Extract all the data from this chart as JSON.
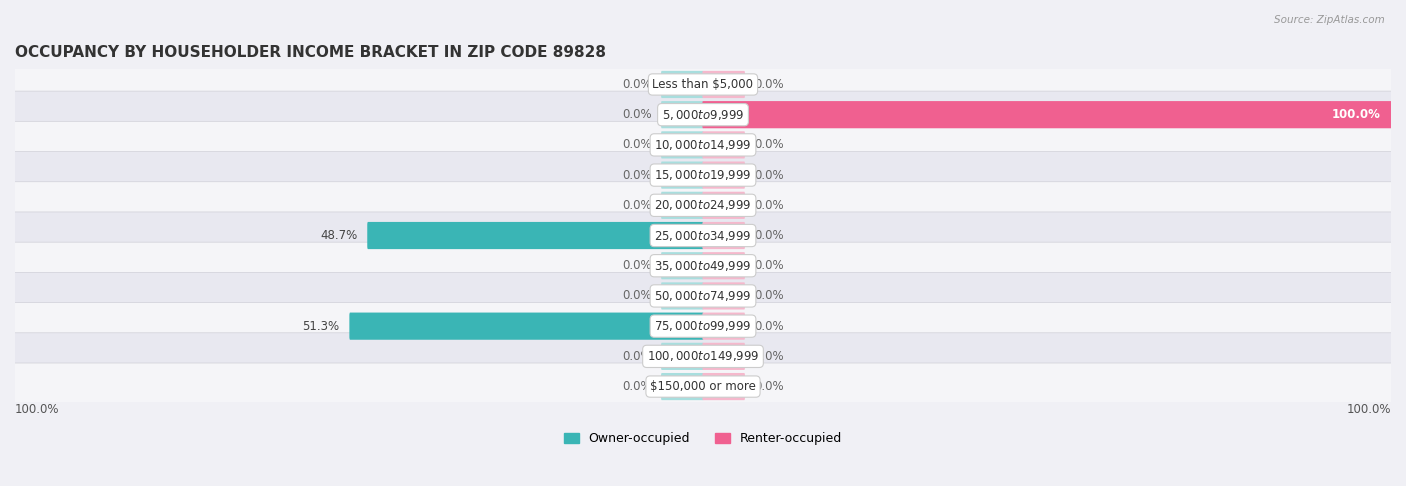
{
  "title": "OCCUPANCY BY HOUSEHOLDER INCOME BRACKET IN ZIP CODE 89828",
  "source": "Source: ZipAtlas.com",
  "categories": [
    "Less than $5,000",
    "$5,000 to $9,999",
    "$10,000 to $14,999",
    "$15,000 to $19,999",
    "$20,000 to $24,999",
    "$25,000 to $34,999",
    "$35,000 to $49,999",
    "$50,000 to $74,999",
    "$75,000 to $99,999",
    "$100,000 to $149,999",
    "$150,000 or more"
  ],
  "owner_values": [
    0.0,
    0.0,
    0.0,
    0.0,
    0.0,
    48.7,
    0.0,
    0.0,
    51.3,
    0.0,
    0.0
  ],
  "renter_values": [
    0.0,
    100.0,
    0.0,
    0.0,
    0.0,
    0.0,
    0.0,
    0.0,
    0.0,
    0.0,
    0.0
  ],
  "owner_color_full": "#3ab5b5",
  "owner_color_stub": "#a8dede",
  "renter_color_full": "#f06090",
  "renter_color_stub": "#f5b8cc",
  "owner_label": "Owner-occupied",
  "renter_label": "Renter-occupied",
  "background_color": "#f0f0f5",
  "row_bg_light": "#f5f5f8",
  "row_bg_dark": "#e8e8f0",
  "title_fontsize": 11,
  "label_fontsize": 8.5,
  "value_fontsize": 8.5,
  "axis_max": 100.0,
  "stub_size": 6.0,
  "bottom_left_label": "100.0%",
  "bottom_right_label": "100.0%"
}
